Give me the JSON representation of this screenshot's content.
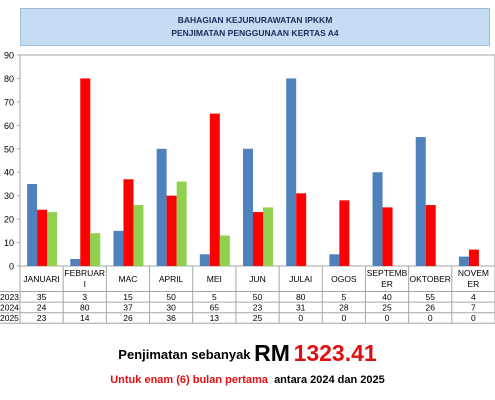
{
  "chart_data": {
    "type": "bar",
    "title_lines": [
      "BAHAGIAN KEJURURAWATAN IPKKM",
      "PENJIMATAN PENGGUNAAN KERTAS A4"
    ],
    "categories": [
      [
        "JANUARI"
      ],
      [
        "FEBRUAR",
        "I"
      ],
      [
        "MAC"
      ],
      [
        "APRIL"
      ],
      [
        "MEI"
      ],
      [
        "JUN"
      ],
      [
        "JULAI"
      ],
      [
        "OGOS"
      ],
      [
        "SEPTEMB",
        "ER"
      ],
      [
        "OKTOBER"
      ],
      [
        "NOVEM",
        "ER"
      ]
    ],
    "series": [
      {
        "name": "2023",
        "color": "#4f81bd",
        "values": [
          35,
          3,
          15,
          50,
          5,
          50,
          80,
          5,
          40,
          55,
          4
        ]
      },
      {
        "name": "2024",
        "color": "#ff0000",
        "values": [
          24,
          80,
          37,
          30,
          65,
          23,
          31,
          28,
          25,
          26,
          7
        ]
      },
      {
        "name": "2025",
        "color": "#92d050",
        "values": [
          23,
          14,
          26,
          36,
          13,
          25,
          0,
          0,
          0,
          0,
          0
        ]
      }
    ],
    "ylim": [
      0,
      90
    ],
    "yticks": [
      0,
      10,
      20,
      30,
      40,
      50,
      60,
      70,
      80,
      90
    ],
    "grid": false,
    "legend": "data-table"
  },
  "footer": {
    "prefix": "Penjimatan sebanyak",
    "currency": "RM",
    "amount": "1323.41",
    "note_red": "Untuk enam (6) bulan pertama",
    "note_black": "antara 2024 dan 2025"
  }
}
